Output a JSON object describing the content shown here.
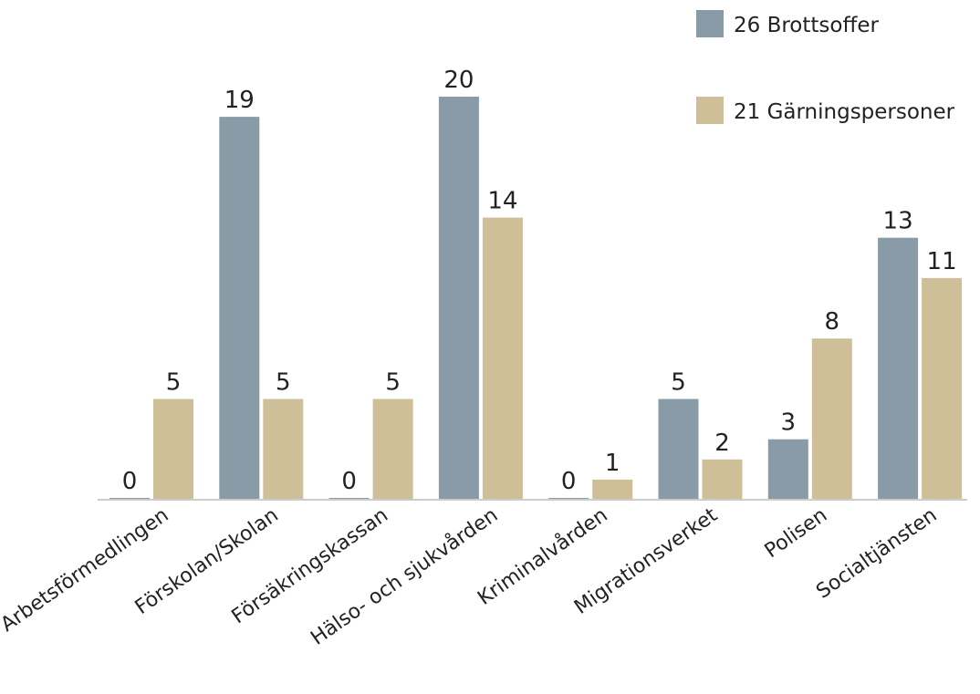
{
  "chart_data": {
    "type": "bar",
    "title": "",
    "xlabel": "",
    "ylabel": "",
    "ylim": [
      0,
      20
    ],
    "grid": false,
    "legend_position": "top-right",
    "categories": [
      "Arbetsförmedlingen",
      "Förskolan/Skolan",
      "Försäkringskassan",
      "Hälso- och sjukvården",
      "Kriminalvården",
      "Migrationsverket",
      "Polisen",
      "Socialtjänsten"
    ],
    "series": [
      {
        "name": "26 Brottsoffer",
        "color": "#8a9ba8",
        "values": [
          0,
          19,
          0,
          20,
          0,
          5,
          3,
          13
        ]
      },
      {
        "name": "21 Gärningspersoner",
        "color": "#cfbf98",
        "values": [
          5,
          5,
          5,
          14,
          1,
          2,
          8,
          11
        ]
      }
    ]
  }
}
